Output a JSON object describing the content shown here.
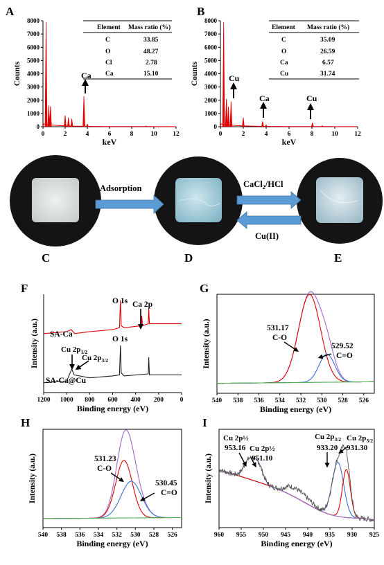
{
  "panel_labels": {
    "A": "A",
    "B": "B",
    "C": "C",
    "D": "D",
    "E": "E",
    "F": "F",
    "G": "G",
    "H": "H",
    "I": "I"
  },
  "colors": {
    "red": "#e00000",
    "blue": "#3b6fcf",
    "green": "#4caf50",
    "purple": "#a066c8",
    "black": "#222222",
    "arrow": "#5b9bd5"
  },
  "chart_data": [
    {
      "id": "A",
      "type": "bar",
      "xlabel": "keV",
      "ylabel": "Counts",
      "xlim": [
        0,
        12
      ],
      "ylim": [
        0,
        8000
      ],
      "xticks": [
        0,
        2,
        4,
        6,
        8,
        10,
        12
      ],
      "yticks": [
        0,
        1000,
        2000,
        3000,
        4000,
        5000,
        6000,
        7000,
        8000
      ],
      "x": [
        0.28,
        0.52,
        0.68,
        2.0,
        2.3,
        2.6,
        3.69,
        4.0,
        9.3
      ],
      "values": [
        7900,
        1600,
        1550,
        850,
        700,
        600,
        2300,
        200,
        60
      ],
      "table": {
        "headers": [
          "Element",
          "Mass ratio (%)"
        ],
        "rows": [
          [
            "C",
            "33.85"
          ],
          [
            "O",
            "48.27"
          ],
          [
            "Cl",
            "2.78"
          ],
          [
            "Ca",
            "15.10"
          ]
        ]
      },
      "annotations": [
        {
          "text": "Ca",
          "x": 3.69
        }
      ]
    },
    {
      "id": "B",
      "type": "bar",
      "xlabel": "keV",
      "ylabel": "Counts",
      "xlim": [
        0,
        12
      ],
      "ylim": [
        0,
        8000
      ],
      "xticks": [
        0,
        2,
        4,
        6,
        8,
        10,
        12
      ],
      "yticks": [
        0,
        1000,
        2000,
        3000,
        4000,
        5000,
        6000,
        7000,
        8000
      ],
      "x": [
        0.28,
        0.52,
        0.7,
        0.93,
        2.0,
        3.69,
        4.0,
        8.05,
        8.9
      ],
      "values": [
        7900,
        2100,
        1500,
        1900,
        700,
        400,
        150,
        300,
        80
      ],
      "table": {
        "headers": [
          "Element",
          "Mass ratio (%)"
        ],
        "rows": [
          [
            "C",
            "35.09"
          ],
          [
            "O",
            "26.59"
          ],
          [
            "Ca",
            "6.57"
          ],
          [
            "Cu",
            "31.74"
          ]
        ]
      },
      "annotations": [
        {
          "text": "Cu",
          "x": 0.93
        },
        {
          "text": "Ca",
          "x": 3.69
        },
        {
          "text": "Cu",
          "x": 8.05
        }
      ]
    },
    {
      "id": "F",
      "type": "line",
      "xlabel": "Binding energy (eV)",
      "ylabel": "Intensity (a.u.)",
      "xlim": [
        1200,
        0
      ],
      "xticks": [
        1200,
        1000,
        800,
        600,
        400,
        200,
        0
      ],
      "series": [
        {
          "name": "SA-Ca",
          "color": "#e00000",
          "x": [
            1200,
            1000,
            960,
            930,
            800,
            600,
            540,
            532,
            525,
            500,
            350,
            347,
            340,
            290,
            286,
            280,
            200,
            0
          ],
          "y": [
            0.6,
            0.62,
            0.64,
            0.6,
            0.62,
            0.64,
            0.66,
            0.94,
            0.68,
            0.66,
            0.68,
            0.78,
            0.68,
            0.7,
            0.86,
            0.7,
            0.7,
            0.7
          ]
        },
        {
          "name": "SA-Ca@Cu",
          "color": "#222222",
          "x": [
            1200,
            1000,
            955,
            935,
            800,
            600,
            540,
            532,
            525,
            500,
            290,
            286,
            280,
            200,
            0
          ],
          "y": [
            0.1,
            0.12,
            0.24,
            0.18,
            0.15,
            0.17,
            0.18,
            0.48,
            0.2,
            0.17,
            0.19,
            0.36,
            0.18,
            0.18,
            0.18
          ]
        }
      ],
      "annotations": [
        "O 1s",
        "Ca 2p",
        "O 1s",
        "Cu 2p1/2",
        "Cu 2p3/2"
      ]
    },
    {
      "id": "G",
      "type": "line",
      "xlabel": "Binding energy (eV)",
      "ylabel": "Intensity (a.u.)",
      "xlim": [
        540,
        525
      ],
      "xticks": [
        540,
        538,
        536,
        534,
        532,
        530,
        528,
        526
      ],
      "series": [
        {
          "name": "envelope",
          "color": "#a066c8",
          "peaks": [
            [
              531.17,
              1.0,
              1.05
            ],
            [
              529.52,
              0.32,
              0.75
            ]
          ]
        },
        {
          "name": "fit1",
          "color": "#e00000",
          "peaks": [
            [
              531.17,
              1.0,
              1.05
            ]
          ]
        },
        {
          "name": "fit2",
          "color": "#3b6fcf",
          "peaks": [
            [
              529.52,
              0.32,
              0.75
            ]
          ]
        },
        {
          "name": "baseline",
          "color": "#4caf50",
          "peaks": []
        }
      ],
      "annotations": [
        {
          "text": "531.17",
          "sub": "C-O"
        },
        {
          "text": "529.52",
          "sub": "C=O"
        }
      ]
    },
    {
      "id": "H",
      "type": "line",
      "xlabel": "Binding energy (eV)",
      "ylabel": "Intensity (a.u.)",
      "xlim": [
        540,
        525
      ],
      "xticks": [
        540,
        538,
        536,
        534,
        532,
        530,
        528,
        526
      ],
      "series": [
        {
          "name": "envelope",
          "color": "#a066c8",
          "peaks": [
            [
              531.23,
              0.66,
              0.9
            ],
            [
              530.45,
              0.42,
              1.1
            ]
          ]
        },
        {
          "name": "fit1",
          "color": "#e00000",
          "peaks": [
            [
              531.23,
              0.66,
              0.9
            ]
          ]
        },
        {
          "name": "fit2",
          "color": "#3b6fcf",
          "peaks": [
            [
              530.45,
              0.42,
              1.1
            ]
          ]
        },
        {
          "name": "baseline",
          "color": "#4caf50",
          "peaks": []
        }
      ],
      "annotations": [
        {
          "text": "531.23",
          "sub": "C-O"
        },
        {
          "text": "530.45",
          "sub": "C=O"
        }
      ]
    },
    {
      "id": "I",
      "type": "line",
      "xlabel": "Binding energy (eV)",
      "ylabel": "Intensity (a.u.)",
      "xlim": [
        960,
        925
      ],
      "xticks": [
        960,
        955,
        950,
        945,
        940,
        935,
        930,
        925
      ],
      "series": [
        {
          "name": "data",
          "color": "#555555"
        },
        {
          "name": "fit933",
          "color": "#3b6fcf",
          "peaks": [
            [
              933.2,
              0.62,
              1.3
            ]
          ]
        },
        {
          "name": "fit931",
          "color": "#e00000",
          "peaks": [
            [
              931.3,
              0.55,
              0.9
            ]
          ]
        },
        {
          "name": "fit953",
          "color": "#a066c8",
          "peaks": [
            [
              953.16,
              0.22,
              1.2
            ],
            [
              951.1,
              0.18,
              1.0
            ]
          ]
        },
        {
          "name": "baseline",
          "color": "#4caf50"
        }
      ],
      "annotations": [
        {
          "text": "Cu 2p½",
          "value": "953.16"
        },
        {
          "text": "Cu 2p½",
          "value": "951.10"
        },
        {
          "text": "Cu 2p3/2",
          "value": "933.20"
        },
        {
          "text": "Cu 2p3/2",
          "value": "931.30"
        }
      ]
    }
  ],
  "photos": {
    "arrow1": "Adsorption",
    "arrow2": "CaCl2/HCl",
    "arrow3": "Cu(II)"
  },
  "text": {
    "A_ca": "Ca",
    "B_cu1": "Cu",
    "B_ca": "Ca",
    "B_cu2": "Cu",
    "F_o1s_top": "O 1s",
    "F_ca2p": "Ca 2p",
    "F_o1s_bot": "O 1s",
    "F_cu12": "Cu 2p",
    "F_cu12_sub": "1/2",
    "F_cu32": "Cu 2p",
    "F_cu32_sub": "3/2",
    "F_saca": "SA-Ca",
    "F_sacacu": "SA-Ca@Cu",
    "G_v1": "531.17",
    "G_s1": "C-O",
    "G_v2": "529.52",
    "G_s2": "C=O",
    "H_v1": "531.23",
    "H_s1": "C-O",
    "H_v2": "530.45",
    "H_s2": "C=O",
    "I_a1": "Cu 2p½",
    "I_v1": "953.16",
    "I_a2": "Cu 2p½",
    "I_v2": "951.10",
    "I_a3": "Cu 2p",
    "I_a3_sub": "3/2",
    "I_v3": "933.20",
    "I_a4": "Cu 2p",
    "I_a4_sub": "3/2",
    "I_v4": "931.30"
  }
}
